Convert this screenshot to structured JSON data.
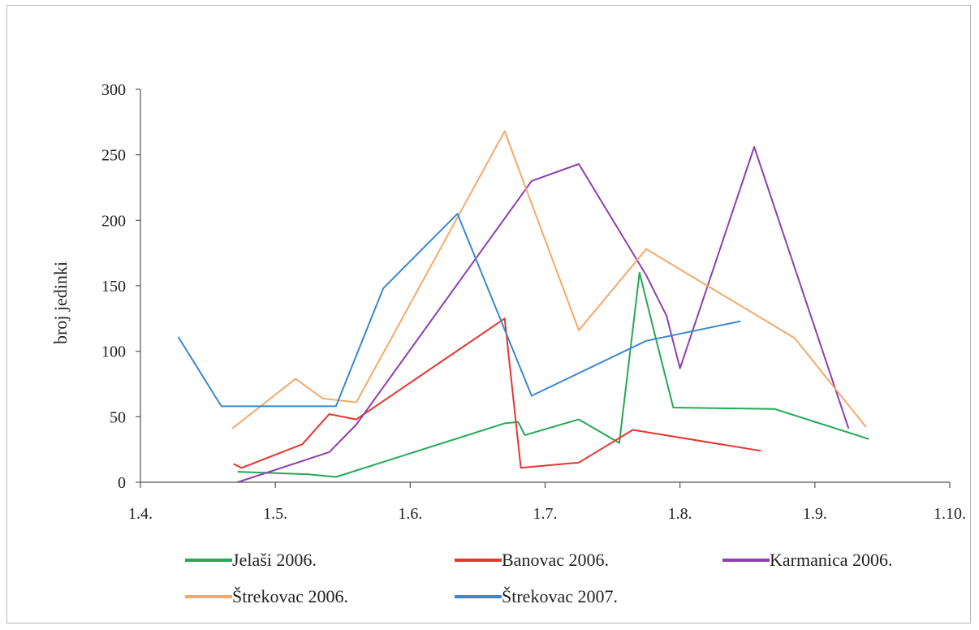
{
  "chart_data": {
    "type": "line",
    "title": "",
    "xlabel": "",
    "ylabel": "broj jedinki",
    "x_ticks": [
      "1.4.",
      "1.5.",
      "1.6.",
      "1.7.",
      "1.8.",
      "1.9.",
      "1.10."
    ],
    "xlim": [
      0,
      6
    ],
    "ylim": [
      0,
      300
    ],
    "y_ticks": [
      "0",
      "50",
      "100",
      "150",
      "200",
      "250",
      "300"
    ],
    "grid": false,
    "legend_position": "bottom",
    "series": [
      {
        "name": "Jelaši 2006.",
        "color": "#22aa55",
        "points": [
          [
            0.72,
            8
          ],
          [
            1.0,
            7
          ],
          [
            1.25,
            6
          ],
          [
            1.45,
            4
          ],
          [
            2.7,
            45
          ],
          [
            2.8,
            46
          ],
          [
            2.85,
            36
          ],
          [
            3.25,
            48
          ],
          [
            3.55,
            30
          ],
          [
            3.7,
            160
          ],
          [
            3.82,
            110
          ],
          [
            3.95,
            57
          ],
          [
            4.7,
            56
          ],
          [
            5.4,
            33
          ]
        ]
      },
      {
        "name": "Banovac 2006.",
        "color": "#e8352f",
        "points": [
          [
            0.69,
            14
          ],
          [
            0.75,
            11
          ],
          [
            1.2,
            29
          ],
          [
            1.4,
            52
          ],
          [
            1.6,
            48
          ],
          [
            2.7,
            125
          ],
          [
            2.82,
            11
          ],
          [
            3.25,
            15
          ],
          [
            3.65,
            40
          ],
          [
            4.6,
            24
          ]
        ]
      },
      {
        "name": "Karmanica 2006.",
        "color": "#8e3fb0",
        "points": [
          [
            0.72,
            0
          ],
          [
            1.4,
            23
          ],
          [
            1.6,
            44
          ],
          [
            2.9,
            230
          ],
          [
            3.25,
            243
          ],
          [
            3.75,
            158
          ],
          [
            3.9,
            127
          ],
          [
            4.0,
            87
          ],
          [
            4.55,
            256
          ],
          [
            5.25,
            41
          ]
        ]
      },
      {
        "name": "Štrekovac 2006.",
        "color": "#f7a868",
        "points": [
          [
            0.68,
            41
          ],
          [
            1.15,
            79
          ],
          [
            1.35,
            64
          ],
          [
            1.6,
            61
          ],
          [
            2.7,
            268
          ],
          [
            3.25,
            116
          ],
          [
            3.75,
            178
          ],
          [
            4.85,
            110
          ],
          [
            5.38,
            42
          ]
        ]
      },
      {
        "name": "Štrekovac 2007.",
        "color": "#3b88d0",
        "points": [
          [
            0.28,
            111
          ],
          [
            0.6,
            58
          ],
          [
            1.45,
            58
          ],
          [
            1.8,
            148
          ],
          [
            2.35,
            205
          ],
          [
            2.9,
            66
          ],
          [
            3.75,
            108
          ],
          [
            4.45,
            123
          ]
        ]
      }
    ]
  }
}
